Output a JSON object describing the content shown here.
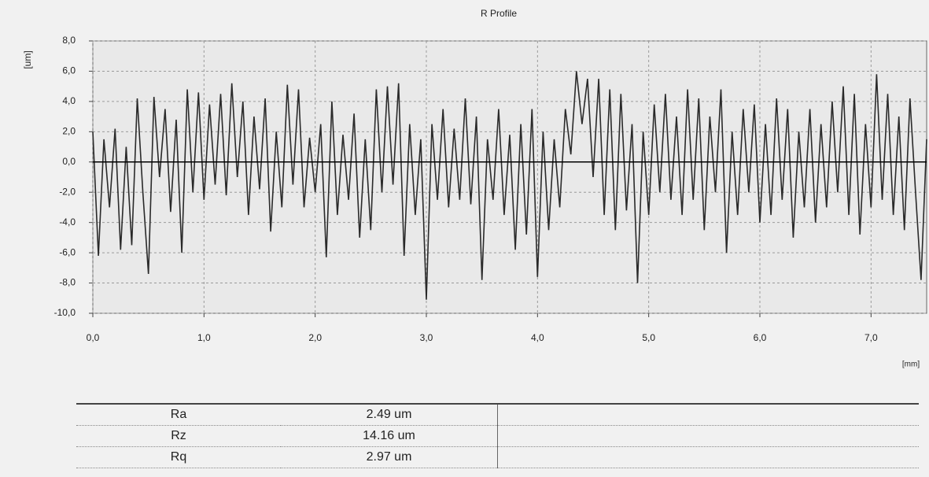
{
  "chart_data": {
    "type": "line",
    "title": "R Profile",
    "y_label": "[um]",
    "x_label": "[mm]",
    "color": "#2a2a2a",
    "x": [
      0,
      0.05,
      0.1,
      0.15,
      0.2,
      0.25,
      0.3,
      0.35,
      0.4,
      0.45,
      0.5,
      0.55,
      0.6,
      0.65,
      0.7,
      0.75,
      0.8,
      0.85,
      0.9,
      0.95,
      1,
      1.05,
      1.1,
      1.15,
      1.2,
      1.25,
      1.3,
      1.35,
      1.4,
      1.45,
      1.5,
      1.55,
      1.6,
      1.65,
      1.7,
      1.75,
      1.8,
      1.85,
      1.9,
      1.95,
      2,
      2.05,
      2.1,
      2.15,
      2.2,
      2.25,
      2.3,
      2.35,
      2.4,
      2.45,
      2.5,
      2.55,
      2.6,
      2.65,
      2.7,
      2.75,
      2.8,
      2.85,
      2.9,
      2.95,
      3,
      3.05,
      3.1,
      3.15,
      3.2,
      3.25,
      3.3,
      3.35,
      3.4,
      3.45,
      3.5,
      3.55,
      3.6,
      3.65,
      3.7,
      3.75,
      3.8,
      3.85,
      3.9,
      3.95,
      4,
      4.05,
      4.1,
      4.15,
      4.2,
      4.25,
      4.3,
      4.35,
      4.4,
      4.45,
      4.5,
      4.55,
      4.6,
      4.65,
      4.7,
      4.75,
      4.8,
      4.85,
      4.9,
      4.95,
      5,
      5.05,
      5.1,
      5.15,
      5.2,
      5.25,
      5.3,
      5.35,
      5.4,
      5.45,
      5.5,
      5.55,
      5.6,
      5.65,
      5.7,
      5.75,
      5.8,
      5.85,
      5.9,
      5.95,
      6,
      6.05,
      6.1,
      6.15,
      6.2,
      6.25,
      6.3,
      6.35,
      6.4,
      6.45,
      6.5,
      6.55,
      6.6,
      6.65,
      6.7,
      6.75,
      6.8,
      6.85,
      6.9,
      6.95,
      7,
      7.05,
      7.1,
      7.15,
      7.2,
      7.25,
      7.3,
      7.35,
      7.4,
      7.45,
      7.5
    ],
    "values": [
      2.0,
      -6.2,
      1.5,
      -3.0,
      2.2,
      -5.8,
      1.0,
      -5.5,
      4.2,
      -2.0,
      -7.4,
      4.3,
      -1.0,
      3.5,
      -3.3,
      2.8,
      -6.0,
      4.8,
      -2.0,
      4.6,
      -2.5,
      3.8,
      -1.5,
      4.5,
      -2.2,
      5.2,
      -1.0,
      4.0,
      -3.5,
      3.0,
      -1.8,
      4.2,
      -4.6,
      2.0,
      -3.0,
      5.1,
      -1.5,
      4.8,
      -3.0,
      1.6,
      -2.0,
      2.5,
      -6.3,
      4.0,
      -3.5,
      1.8,
      -2.5,
      3.2,
      -5.0,
      1.5,
      -4.5,
      4.8,
      -2.0,
      5.0,
      -1.5,
      5.2,
      -6.2,
      2.5,
      -3.5,
      1.5,
      -9.1,
      2.5,
      -2.5,
      3.5,
      -3.0,
      2.2,
      -2.5,
      4.2,
      -2.8,
      3.0,
      -7.8,
      1.5,
      -2.5,
      3.5,
      -3.5,
      1.8,
      -5.8,
      2.5,
      -4.8,
      3.5,
      -7.6,
      2.0,
      -4.5,
      1.5,
      -3.0,
      3.5,
      0.5,
      6.0,
      2.5,
      5.5,
      -1.0,
      5.5,
      -3.5,
      4.8,
      -4.5,
      4.5,
      -3.2,
      2.5,
      -8.0,
      2.0,
      -3.5,
      3.8,
      -2.0,
      4.5,
      -2.5,
      3.0,
      -3.5,
      4.8,
      -2.5,
      4.2,
      -4.5,
      3.0,
      -2.0,
      4.8,
      -6.0,
      2.0,
      -3.5,
      3.5,
      -2.0,
      3.8,
      -4.0,
      2.5,
      -3.5,
      4.2,
      -2.5,
      3.5,
      -5.0,
      2.0,
      -3.0,
      3.5,
      -4.0,
      2.5,
      -3.0,
      4.0,
      -2.0,
      5.0,
      -3.5,
      4.5,
      -4.8,
      2.5,
      -3.0,
      5.8,
      -2.5,
      4.5,
      -3.5,
      3.0,
      -4.5,
      4.2,
      -2.0,
      -7.8,
      1.5
    ],
    "xlim": [
      0,
      7.5
    ],
    "ylim": [
      -10,
      8
    ],
    "xticks": [
      {
        "value": 0,
        "label": "0,0"
      },
      {
        "value": 1,
        "label": "1,0"
      },
      {
        "value": 2,
        "label": "2,0"
      },
      {
        "value": 3,
        "label": "3,0"
      },
      {
        "value": 4,
        "label": "4,0"
      },
      {
        "value": 5,
        "label": "5,0"
      },
      {
        "value": 6,
        "label": "6,0"
      },
      {
        "value": 7,
        "label": "7,0"
      }
    ],
    "yticks": [
      {
        "value": 8,
        "label": "8,0"
      },
      {
        "value": 6,
        "label": "6,0"
      },
      {
        "value": 4,
        "label": "4,0"
      },
      {
        "value": 2,
        "label": "2,0"
      },
      {
        "value": 0,
        "label": "0,0"
      },
      {
        "value": -2,
        "label": "-2,0"
      },
      {
        "value": -4,
        "label": "-4,0"
      },
      {
        "value": -6,
        "label": "-6,0"
      },
      {
        "value": -8,
        "label": "-8,0"
      },
      {
        "value": -10,
        "label": "-10,0"
      }
    ],
    "grid": true
  },
  "table": {
    "rows": [
      [
        "Ra",
        "2.49 um"
      ],
      [
        "Rz",
        "14.16 um"
      ],
      [
        "Rq",
        "2.97 um"
      ]
    ]
  }
}
